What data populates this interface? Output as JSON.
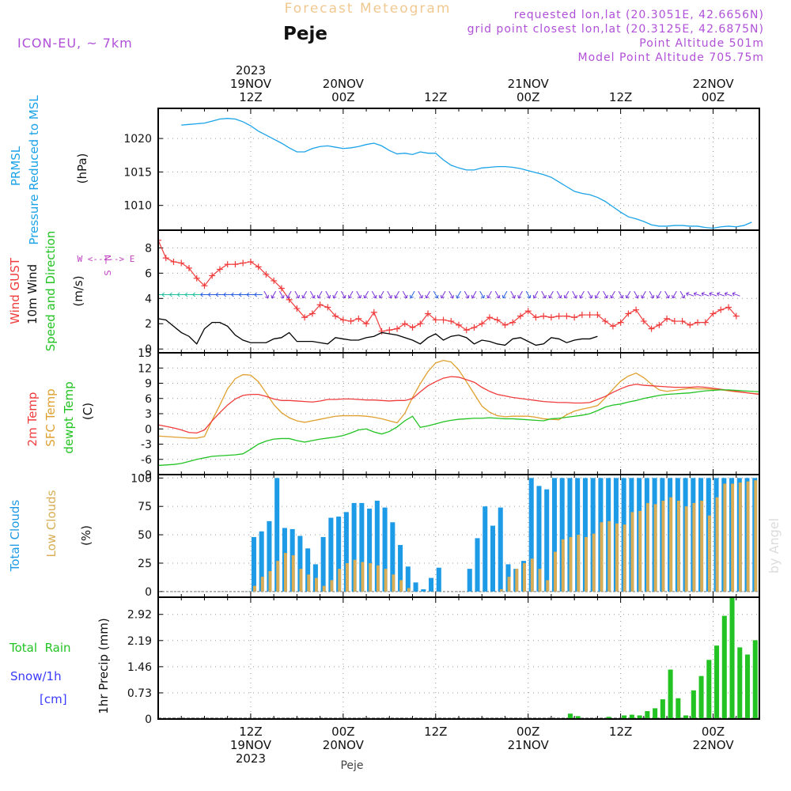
{
  "header": {
    "title_top": "Forecast Meteogram",
    "location": "Peje",
    "model": "ICON-EU, ~ 7km",
    "requested": "requested lon,lat (20.3051E, 42.6656N)",
    "grid_point": "grid point closest lon,lat (20.3125E, 42.6875N)",
    "point_altitude": "Point Altitude 501m",
    "model_altitude": "Model Point Altitude 705.75m",
    "footer_location": "Peje",
    "watermark": "by Angel"
  },
  "colors": {
    "pressure": "#1aa3e8",
    "gust": "#f03c3c",
    "wind": "#000000",
    "dir_label": "#22c322",
    "temp2m": "#f03c3c",
    "sfc": "#e0a030",
    "dewpt": "#22c322",
    "total_clouds": "#1e9be6",
    "low_clouds": "#d8ad55",
    "rain": "#22c322",
    "snow": "#3a3aff",
    "purple": "#b050d8",
    "orange": "#f0c890",
    "compass": "#c040c0",
    "wind_arrows": [
      "#22c0a0",
      "#2a60e0",
      "#7a30d8"
    ]
  },
  "axes": {
    "x_top": [
      {
        "t": 12,
        "lines": [
          "2023",
          "19NOV",
          "12Z"
        ]
      },
      {
        "t": 24,
        "lines": [
          "20NOV",
          "00Z"
        ]
      },
      {
        "t": 36,
        "lines": [
          "12Z"
        ]
      },
      {
        "t": 48,
        "lines": [
          "21NOV",
          "00Z"
        ]
      },
      {
        "t": 60,
        "lines": [
          "12Z"
        ]
      },
      {
        "t": 72,
        "lines": [
          "22NOV",
          "00Z"
        ]
      }
    ],
    "x_bottom": [
      {
        "t": 12,
        "lines": [
          "12Z",
          "19NOV",
          "2023"
        ]
      },
      {
        "t": 24,
        "lines": [
          "00Z",
          "20NOV"
        ]
      },
      {
        "t": 36,
        "lines": [
          "12Z"
        ]
      },
      {
        "t": 48,
        "lines": [
          "00Z",
          "21NOV"
        ]
      },
      {
        "t": 60,
        "lines": [
          "12Z"
        ]
      },
      {
        "t": 72,
        "lines": [
          "00Z",
          "22NOV"
        ]
      }
    ]
  },
  "panel_labels": {
    "pressure": [
      "PRMSL",
      "Pressure Reduced to MSL",
      "(hPa)"
    ],
    "wind": [
      "Wind GUST",
      "10m Wind",
      "Speed and Direction",
      "(m/s)"
    ],
    "compass": [
      "N",
      "W <--|--> E",
      "S"
    ],
    "temp": [
      "2m Temp",
      "SFC Temp",
      "dewpt Temp",
      "(C)"
    ],
    "clouds": [
      "Total Clouds",
      "Low Clouds",
      "(%)"
    ],
    "precip": [
      "Total  Rain",
      "Snow/1h",
      "[cm]",
      "1hr Precip (mm)"
    ]
  },
  "chart_data": [
    {
      "type": "line",
      "panel": "pressure",
      "ylabel": "(hPa)",
      "yticks": [
        1010,
        1015,
        1020
      ],
      "ylim": [
        1006.3,
        1024.5
      ],
      "x_start": 3,
      "x_step": 1,
      "series": [
        {
          "name": "PRMSL",
          "values": [
            1022.0,
            1022.1,
            1022.2,
            1022.3,
            1022.6,
            1022.9,
            1023.0,
            1022.9,
            1022.5,
            1021.9,
            1021.1,
            1020.5,
            1019.9,
            1019.3,
            1018.6,
            1018.0,
            1018.0,
            1018.5,
            1018.8,
            1018.9,
            1018.7,
            1018.5,
            1018.6,
            1018.8,
            1019.1,
            1019.3,
            1018.9,
            1018.2,
            1017.7,
            1017.8,
            1017.6,
            1018.0,
            1017.8,
            1017.8,
            1016.8,
            1016.0,
            1015.6,
            1015.3,
            1015.3,
            1015.6,
            1015.7,
            1015.8,
            1015.8,
            1015.7,
            1015.5,
            1015.2,
            1014.9,
            1014.6,
            1014.2,
            1013.5,
            1012.8,
            1012.1,
            1011.8,
            1011.6,
            1011.2,
            1010.6,
            1009.8,
            1009.0,
            1008.3,
            1008.0,
            1007.6,
            1007.1,
            1006.9,
            1006.9,
            1007.0,
            1007.0,
            1006.9,
            1006.9,
            1006.7,
            1006.6,
            1006.8,
            1006.9,
            1006.8,
            1007.0,
            1007.5
          ]
        }
      ]
    },
    {
      "type": "line",
      "panel": "wind",
      "ylabel": "(m/s)",
      "yticks": [
        0,
        2,
        4,
        6,
        8
      ],
      "ylim": [
        -0.3,
        9.4
      ],
      "x_start": 0,
      "x_step": 1,
      "series": [
        {
          "name": "Wind GUST",
          "values": [
            8.6,
            7.2,
            6.9,
            6.8,
            6.4,
            5.6,
            5.0,
            5.8,
            6.3,
            6.7,
            6.7,
            6.8,
            6.9,
            6.5,
            5.9,
            5.4,
            4.8,
            3.9,
            3.2,
            2.5,
            2.8,
            3.5,
            3.3,
            2.6,
            2.3,
            2.2,
            2.4,
            2.0,
            2.9,
            1.4,
            1.5,
            1.6,
            2.0,
            1.7,
            2.0,
            2.8,
            2.3,
            2.3,
            2.2,
            1.9,
            1.5,
            1.7,
            2.0,
            2.5,
            2.3,
            1.9,
            2.1,
            2.6,
            3.0,
            2.5,
            2.6,
            2.5,
            2.6,
            2.6,
            2.5,
            2.7,
            2.7,
            2.7,
            2.2,
            1.8,
            2.1,
            2.8,
            3.1,
            2.2,
            1.6,
            1.9,
            2.4,
            2.2,
            2.2,
            1.9,
            2.1,
            2.1,
            2.8,
            3.1,
            3.3,
            2.6
          ]
        },
        {
          "name": "10m Wind",
          "values": [
            2.4,
            2.3,
            1.8,
            1.3,
            1.0,
            0.4,
            1.6,
            2.1,
            2.1,
            1.8,
            1.1,
            0.7,
            0.5,
            0.5,
            0.5,
            0.8,
            0.9,
            1.3,
            0.6,
            0.6,
            0.6,
            0.5,
            0.4,
            0.9,
            0.8,
            0.7,
            0.7,
            0.9,
            1.0,
            1.3,
            1.2,
            1.1,
            0.9,
            0.7,
            0.4,
            0.9,
            1.2,
            0.7,
            1.0,
            1.1,
            0.9,
            0.4,
            0.7,
            0.6,
            0.4,
            0.3,
            0.8,
            0.9,
            0.6,
            0.3,
            0.4,
            0.9,
            0.8,
            0.5,
            0.7,
            0.8,
            0.8,
            1.0
          ]
        }
      ]
    },
    {
      "type": "line",
      "panel": "temp",
      "ylabel": "(C)",
      "yticks": [
        -9,
        -6,
        -3,
        0,
        3,
        6,
        9,
        12,
        15
      ],
      "ylim": [
        -9,
        15
      ],
      "x_start": 0,
      "x_step": 1,
      "series": [
        {
          "name": "2m Temp",
          "values": [
            0.8,
            0.5,
            0.2,
            -0.2,
            -0.7,
            -0.8,
            -0.2,
            1.6,
            3.2,
            4.7,
            5.9,
            6.6,
            6.8,
            6.8,
            6.4,
            5.9,
            5.6,
            5.6,
            5.5,
            5.4,
            5.3,
            5.5,
            5.8,
            5.8,
            5.9,
            5.9,
            5.8,
            5.7,
            5.7,
            5.6,
            5.5,
            5.6,
            5.6,
            6.0,
            7.3,
            8.5,
            9.3,
            10.0,
            10.3,
            10.2,
            9.7,
            9.2,
            8.2,
            7.4,
            6.8,
            6.5,
            6.2,
            6.0,
            5.8,
            5.6,
            5.4,
            5.3,
            5.2,
            5.2,
            5.1,
            5.1,
            5.2,
            5.8,
            6.4,
            7.2,
            7.9,
            8.5,
            8.8,
            8.6,
            8.5,
            8.4,
            8.3,
            8.2,
            8.2,
            8.2,
            8.3,
            8.2,
            8.0,
            7.8,
            7.6,
            7.4,
            7.2,
            7.0,
            6.8
          ]
        },
        {
          "name": "SFC Temp",
          "values": [
            -1.4,
            -1.5,
            -1.6,
            -1.7,
            -1.8,
            -1.8,
            -1.5,
            1.7,
            4.7,
            7.9,
            9.9,
            10.7,
            10.6,
            9.3,
            7.1,
            4.8,
            3.2,
            2.2,
            1.6,
            1.3,
            1.6,
            1.9,
            2.2,
            2.5,
            2.6,
            2.6,
            2.6,
            2.5,
            2.3,
            2.0,
            1.6,
            1.2,
            3.1,
            6.2,
            8.9,
            11.3,
            13.0,
            13.5,
            13.2,
            11.6,
            9.3,
            6.9,
            4.5,
            3.3,
            2.6,
            2.4,
            2.5,
            2.5,
            2.5,
            2.3,
            2.0,
            1.9,
            1.8,
            2.8,
            3.5,
            3.9,
            4.2,
            4.6,
            6.1,
            7.8,
            9.4,
            10.4,
            11.0,
            10.1,
            8.8,
            7.7,
            7.4,
            7.6,
            7.8,
            8.0,
            7.9,
            7.9,
            7.8,
            7.7,
            7.5,
            7.3,
            7.2,
            7.0,
            6.9
          ]
        },
        {
          "name": "dewpt Temp",
          "values": [
            -7.2,
            -7.1,
            -7.0,
            -6.8,
            -6.4,
            -6.0,
            -5.7,
            -5.4,
            -5.3,
            -5.2,
            -5.1,
            -4.9,
            -4.0,
            -3.0,
            -2.4,
            -2.0,
            -1.9,
            -1.9,
            -2.3,
            -2.6,
            -2.3,
            -2.0,
            -1.8,
            -1.6,
            -1.3,
            -0.8,
            -0.2,
            0.0,
            -0.6,
            -1.0,
            -0.5,
            0.4,
            1.6,
            2.5,
            0.3,
            0.6,
            1.0,
            1.4,
            1.7,
            1.9,
            2.0,
            2.1,
            2.1,
            2.2,
            2.1,
            2.0,
            2.0,
            1.9,
            1.8,
            1.7,
            1.6,
            2.0,
            2.1,
            2.3,
            2.5,
            2.7,
            3.0,
            3.6,
            4.3,
            4.7,
            4.9,
            5.3,
            5.6,
            6.0,
            6.3,
            6.6,
            6.8,
            6.9,
            7.0,
            7.1,
            7.3,
            7.5,
            7.6,
            7.7,
            7.7,
            7.6,
            7.5,
            7.4,
            7.3
          ]
        }
      ]
    },
    {
      "type": "bar",
      "panel": "clouds",
      "ylabel": "(%)",
      "yticks": [
        0,
        25,
        50,
        75,
        100
      ],
      "ylim": [
        -5,
        103
      ],
      "x_start": 0,
      "x_step": 1,
      "series": [
        {
          "name": "Total Clouds",
          "values": [
            0,
            0,
            0,
            0,
            0,
            0,
            0,
            0,
            0,
            0,
            0,
            0,
            48,
            53,
            62,
            100,
            56,
            55,
            49,
            38,
            24,
            48,
            65,
            66,
            70,
            78,
            78,
            73,
            80,
            74,
            61,
            41,
            22,
            8,
            2,
            12,
            21,
            0,
            0,
            0,
            20,
            47,
            75,
            58,
            74,
            24,
            20,
            27,
            100,
            93,
            90,
            100,
            100,
            100,
            100,
            100,
            100,
            100,
            100,
            100,
            100,
            100,
            100,
            100,
            100,
            100,
            100,
            100,
            100,
            100,
            100,
            100,
            100,
            100,
            100,
            100,
            100,
            100,
            100
          ]
        },
        {
          "name": "Low Clouds",
          "values": [
            0,
            0,
            0,
            0,
            0,
            0,
            0,
            0,
            0,
            0,
            0,
            0,
            5,
            13,
            18,
            27,
            34,
            32,
            20,
            15,
            12,
            5,
            10,
            20,
            25,
            28,
            26,
            25,
            23,
            20,
            15,
            10,
            3,
            0,
            0,
            0,
            0,
            0,
            0,
            0,
            0,
            0,
            0,
            0,
            2,
            13,
            20,
            25,
            29,
            20,
            10,
            35,
            46,
            48,
            50,
            48,
            51,
            61,
            62,
            60,
            59,
            70,
            71,
            78,
            77,
            80,
            83,
            80,
            75,
            78,
            80,
            67,
            83,
            95,
            95,
            96,
            97,
            98,
            99
          ]
        }
      ]
    },
    {
      "type": "bar",
      "panel": "precip",
      "ylabel": "1hr Precip (mm)",
      "yticks": [
        0,
        0.73,
        1.46,
        2.19,
        2.92
      ],
      "ylim": [
        0,
        3.4
      ],
      "x_start": 0,
      "x_step": 1,
      "series": [
        {
          "name": "Total Rain",
          "values": [
            0,
            0,
            0,
            0,
            0,
            0,
            0,
            0,
            0,
            0,
            0,
            0,
            0,
            0,
            0,
            0,
            0,
            0,
            0,
            0,
            0,
            0,
            0,
            0,
            0,
            0,
            0,
            0,
            0,
            0,
            0,
            0,
            0,
            0,
            0,
            0,
            0,
            0,
            0,
            0,
            0,
            0,
            0,
            0,
            0,
            0,
            0,
            0,
            0,
            0,
            0,
            0,
            0,
            0.15,
            0.08,
            0,
            0,
            0,
            0.06,
            0,
            0.1,
            0.12,
            0.1,
            0.22,
            0.3,
            0.55,
            1.38,
            0.58,
            0.1,
            0.8,
            1.2,
            1.65,
            2.05,
            2.88,
            3.38,
            2.0,
            1.8,
            2.2
          ]
        },
        {
          "name": "Snow/1h",
          "values": []
        }
      ]
    }
  ]
}
